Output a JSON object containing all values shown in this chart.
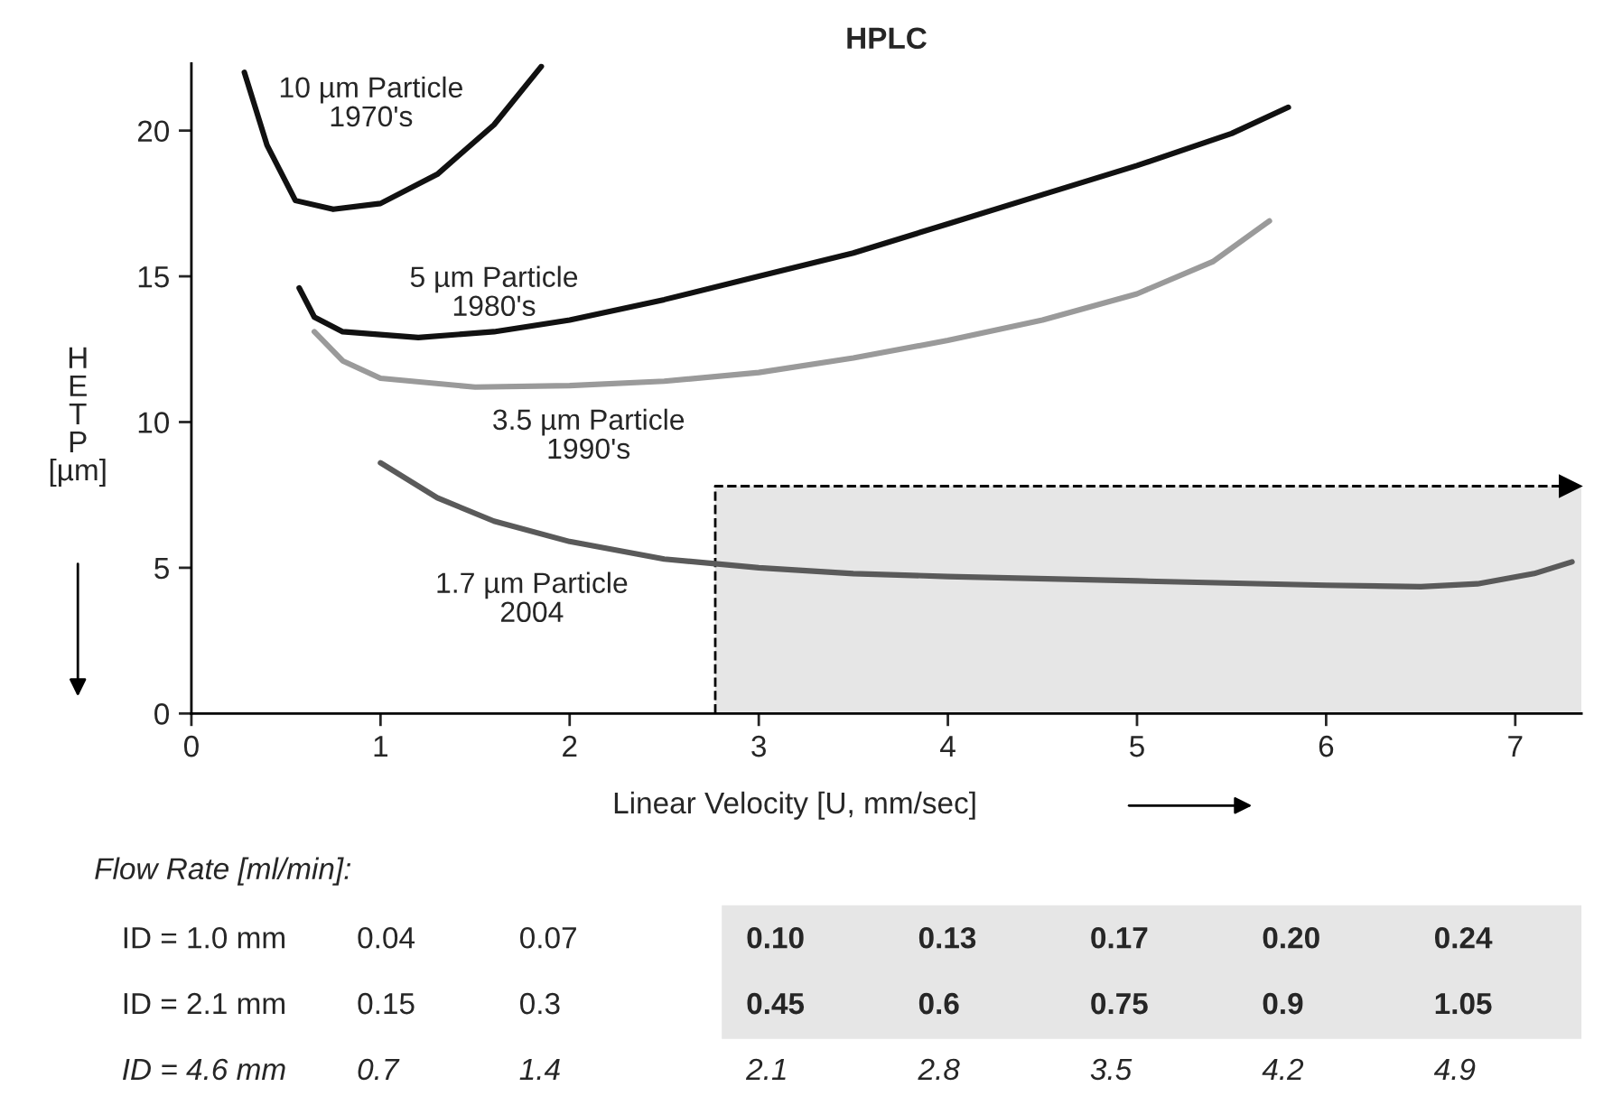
{
  "chart_data": {
    "type": "line",
    "title": "HPLC",
    "xlabel": "Linear Velocity [U, mm/sec]",
    "ylabel": "H\nE\nT\nP\n[µm]",
    "xlim": [
      0,
      7.35
    ],
    "ylim": [
      0,
      22.3
    ],
    "xticks": [
      0,
      1,
      2,
      3,
      4,
      5,
      6,
      7
    ],
    "yticks": [
      0,
      5,
      10,
      15,
      20
    ],
    "grid": false,
    "legend": false,
    "marker": "none",
    "line_style": "solid",
    "series": [
      {
        "name": "10 µm Particle\n1970's",
        "color": "#111111",
        "x": [
          0.28,
          0.4,
          0.55,
          0.75,
          1.0,
          1.3,
          1.6,
          1.85
        ],
        "values": [
          22,
          19.5,
          17.6,
          17.3,
          17.5,
          18.5,
          20.2,
          22.2
        ]
      },
      {
        "name": "5 µm Particle\n1980's",
        "color": "#111111",
        "x": [
          0.57,
          0.65,
          0.8,
          1.2,
          1.6,
          2.0,
          2.5,
          3,
          3.5,
          4,
          4.5,
          5,
          5.5,
          5.8
        ],
        "values": [
          14.6,
          13.6,
          13.1,
          12.9,
          13.1,
          13.5,
          14.2,
          15.0,
          15.8,
          16.8,
          17.8,
          18.8,
          19.9,
          20.8
        ]
      },
      {
        "name": "3.5 µm Particle\n1990's",
        "color": "#9a9a9a",
        "x": [
          0.65,
          0.8,
          1.0,
          1.5,
          2,
          2.5,
          3,
          3.5,
          4,
          4.5,
          5,
          5.4,
          5.7
        ],
        "values": [
          13.1,
          12.1,
          11.5,
          11.2,
          11.25,
          11.4,
          11.7,
          12.2,
          12.8,
          13.5,
          14.4,
          15.5,
          16.9
        ]
      },
      {
        "name": "1.7 µm Particle\n2004",
        "color": "#5a5a5a",
        "x": [
          1.0,
          1.3,
          1.6,
          2,
          2.5,
          3,
          3.5,
          4,
          5,
          6,
          6.5,
          6.8,
          7.1,
          7.3
        ],
        "values": [
          8.6,
          7.4,
          6.6,
          5.9,
          5.3,
          5.0,
          4.8,
          4.7,
          4.55,
          4.4,
          4.35,
          4.45,
          4.8,
          5.2
        ]
      }
    ],
    "bands": [
      {
        "axis": "x",
        "from": 2.77,
        "to": 7.35,
        "color": "#e6e6e6"
      }
    ],
    "annotations": [
      "Flow Rate [ml/min]:",
      "ID = 1.0 mm",
      "0.04",
      "0.07",
      "0.10",
      "0.13",
      "0.17",
      "0.20",
      "0.24",
      "ID = 2.1 mm",
      "0.15",
      "0.3",
      "0.45",
      "0.6",
      "0.75",
      "0.9",
      "1.05",
      "ID = 4.6 mm",
      "0.7",
      "1.4",
      "2.1",
      "2.8",
      "3.5",
      "4.2",
      "4.9"
    ]
  }
}
